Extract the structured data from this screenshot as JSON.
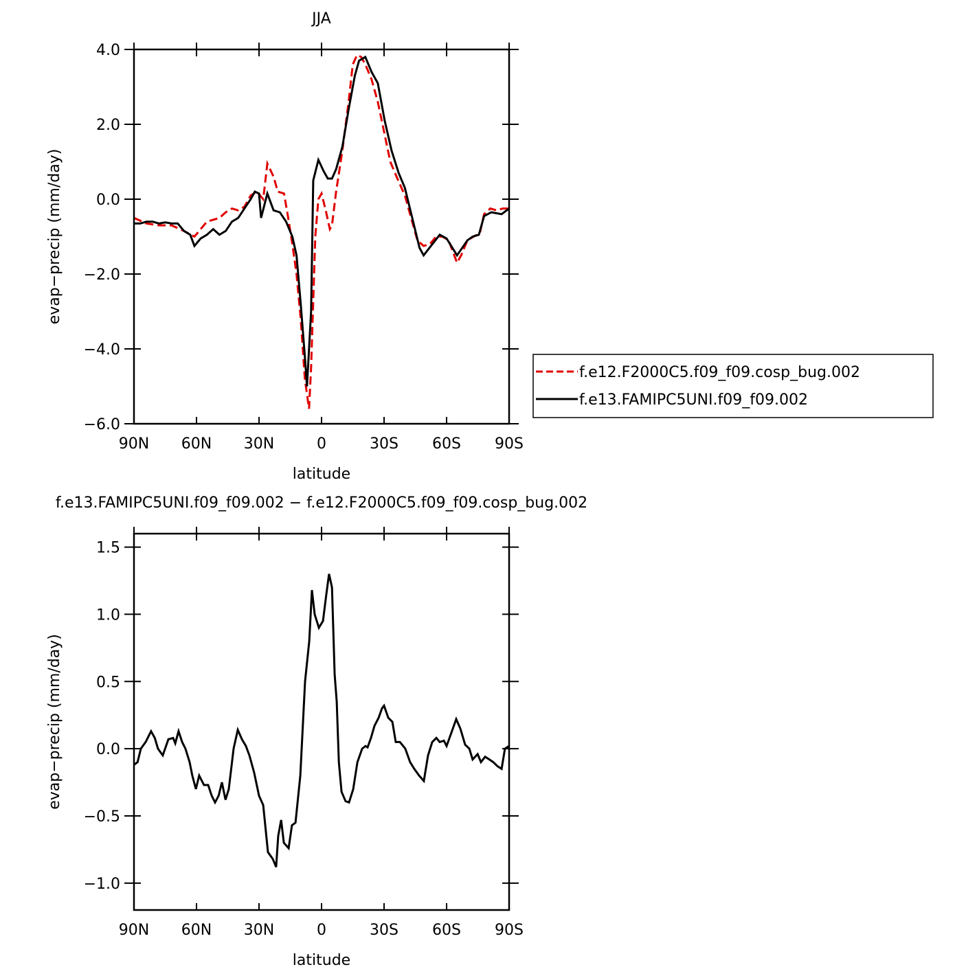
{
  "chart_data": [
    {
      "type": "line",
      "title": "JJA",
      "xlabel": "latitude",
      "ylabel": "evap−precip (mm/day)",
      "xlim": [
        90,
        -90
      ],
      "xticks": [
        {
          "value": 90,
          "label": "90N"
        },
        {
          "value": 60,
          "label": "60N"
        },
        {
          "value": 30,
          "label": "30N"
        },
        0,
        {
          "value": -30,
          "label": "30S"
        },
        {
          "value": -60,
          "label": "60S"
        },
        {
          "value": -90,
          "label": "90S"
        }
      ],
      "ylim": [
        -6,
        4
      ],
      "yticks": [
        {
          "value": 4,
          "label": "4.0"
        },
        {
          "value": 2,
          "label": "2.0"
        },
        {
          "value": 0,
          "label": "0.0"
        },
        {
          "value": -2,
          "label": "−2.0"
        },
        {
          "value": -4,
          "label": "−4.0"
        },
        {
          "value": -6,
          "label": "−6.0"
        }
      ],
      "legend": "outside-right",
      "series": [
        {
          "name": "f.e12.F2000C5.f09_f09.cosp_bug.002",
          "color": "#e00000",
          "dash": true,
          "x": [
            90,
            84,
            78,
            72,
            66,
            61,
            58,
            55,
            52,
            49,
            46,
            43,
            40,
            37,
            34,
            31,
            28,
            26,
            23,
            21,
            18,
            16,
            14,
            12,
            10,
            8,
            6,
            5,
            3,
            1.5,
            0,
            -2,
            -4,
            -5,
            -7,
            -10,
            -13,
            -15,
            -17,
            -19,
            -21,
            -24,
            -27,
            -30,
            -33,
            -36,
            -40,
            -43,
            -46,
            -49,
            -52,
            -55,
            -58,
            -61,
            -63,
            -65,
            -67,
            -70,
            -73,
            -76,
            -78,
            -81,
            -84,
            -87,
            -90
          ],
          "values": [
            -0.5,
            -0.65,
            -0.7,
            -0.7,
            -0.85,
            -1.0,
            -0.8,
            -0.6,
            -0.55,
            -0.5,
            -0.35,
            -0.25,
            -0.3,
            -0.2,
            0.1,
            0.2,
            0.0,
            0.95,
            0.6,
            0.2,
            0.15,
            -0.5,
            -1.2,
            -2.0,
            -3.2,
            -4.8,
            -5.6,
            -4.5,
            -1.0,
            0.0,
            0.15,
            -0.3,
            -0.8,
            -0.7,
            0.2,
            1.3,
            2.6,
            3.6,
            3.85,
            3.8,
            3.6,
            3.2,
            2.6,
            1.8,
            1.0,
            0.6,
            0.1,
            -0.5,
            -1.1,
            -1.25,
            -1.2,
            -1.0,
            -1.0,
            -1.1,
            -1.4,
            -1.7,
            -1.5,
            -1.1,
            -1.0,
            -0.9,
            -0.4,
            -0.25,
            -0.3,
            -0.25,
            -0.25
          ]
        },
        {
          "name": "f.e13.FAMIPC5UNI.f09_f09.002",
          "color": "#000000",
          "dash": false,
          "x": [
            90,
            87,
            84,
            81,
            78,
            75,
            72,
            69,
            66,
            63,
            61,
            58,
            55,
            52,
            49,
            46,
            43,
            40,
            37,
            34,
            32,
            30,
            29,
            26,
            23,
            20,
            17,
            14,
            12,
            10,
            8,
            7,
            5,
            4,
            1.5,
            -1,
            -3,
            -5,
            -7,
            -10,
            -13,
            -16,
            -18,
            -21,
            -24,
            -27,
            -30.3,
            -33.6,
            -37,
            -40,
            -43.5,
            -47,
            -49,
            -51.8,
            -56.7,
            -60,
            -65,
            -70,
            -72.5,
            -75.5,
            -78,
            -81.5,
            -86.4,
            -90
          ],
          "values": [
            -0.65,
            -0.65,
            -0.6,
            -0.6,
            -0.65,
            -0.62,
            -0.65,
            -0.65,
            -0.85,
            -0.95,
            -1.25,
            -1.05,
            -0.95,
            -0.8,
            -0.95,
            -0.85,
            -0.6,
            -0.5,
            -0.25,
            0.0,
            0.2,
            0.15,
            -0.5,
            0.15,
            -0.3,
            -0.35,
            -0.6,
            -1.0,
            -1.5,
            -2.8,
            -4.2,
            -5.0,
            -3.0,
            0.5,
            1.05,
            0.75,
            0.55,
            0.55,
            0.8,
            1.4,
            2.4,
            3.3,
            3.7,
            3.8,
            3.4,
            3.1,
            2.1,
            1.3,
            0.7,
            0.3,
            -0.5,
            -1.3,
            -1.5,
            -1.3,
            -0.95,
            -1.05,
            -1.5,
            -1.1,
            -1.0,
            -0.95,
            -0.45,
            -0.35,
            -0.4,
            -0.25
          ]
        }
      ]
    },
    {
      "type": "line",
      "title": "f.e13.FAMIPC5UNI.f09_f09.002 − f.e12.F2000C5.f09_f09.cosp_bug.002",
      "xlabel": "latitude",
      "ylabel": "evap−precip (mm/day)",
      "xlim": [
        90,
        -90
      ],
      "xticks": [
        {
          "value": 90,
          "label": "90N"
        },
        {
          "value": 60,
          "label": "60N"
        },
        {
          "value": 30,
          "label": "30N"
        },
        0,
        {
          "value": -30,
          "label": "30S"
        },
        {
          "value": -60,
          "label": "60S"
        },
        {
          "value": -90,
          "label": "90S"
        }
      ],
      "ylim": [
        -1.2,
        1.6
      ],
      "yticks": [
        1.5,
        {
          "value": 1,
          "label": "1.0"
        },
        0.5,
        {
          "value": 0,
          "label": "0.0"
        },
        {
          "value": -0.5,
          "label": "−0.5"
        },
        {
          "value": -1,
          "label": "−1.0"
        }
      ],
      "series": [
        {
          "color": "#000000",
          "dash": false,
          "x": [
            90,
            88.3,
            86.7,
            84.4,
            81.8,
            80,
            78.5,
            76.2,
            73.5,
            71.2,
            70.2,
            68.6,
            66.9,
            65.3,
            63.3,
            62,
            60.3,
            58.7,
            56.4,
            54.4,
            52.7,
            51.1,
            49.4,
            47.8,
            46.1,
            44.5,
            42.2,
            40.2,
            38.2,
            36.3,
            34.6,
            32.3,
            30,
            28,
            25.7,
            23.4,
            21.8,
            20.8,
            19.4,
            18.1,
            15.8,
            14.2,
            12.5,
            10.2,
            7.9,
            5.9,
            4.6,
            3.3,
            1.3,
            -0.7,
            -2.3,
            -3.6,
            -5,
            -6.3,
            -7.3,
            -8.3,
            -9.6,
            -11.5,
            -13.2,
            -15.2,
            -17.2,
            -19.5,
            -21.1,
            -22.1,
            -23.7,
            -25.4,
            -27.4,
            -29,
            -30,
            -32,
            -34,
            -35.6,
            -37.6,
            -40.2,
            -42.5,
            -44.5,
            -46.8,
            -49.1,
            -51.1,
            -53.1,
            -55.1,
            -56.7,
            -58.7,
            -60,
            -62.3,
            -64.6,
            -66.6,
            -68.9,
            -70.9,
            -72.5,
            -74.9,
            -76.5,
            -78.5,
            -80.5,
            -82.4,
            -84.4,
            -86.4,
            -88,
            -90
          ],
          "values": [
            -0.12,
            -0.1,
            0.0,
            0.05,
            0.13,
            0.08,
            0.0,
            -0.05,
            0.07,
            0.08,
            0.04,
            0.13,
            0.05,
            0.0,
            -0.1,
            -0.2,
            -0.3,
            -0.2,
            -0.27,
            -0.27,
            -0.35,
            -0.4,
            -0.35,
            -0.25,
            -0.38,
            -0.3,
            0.0,
            0.14,
            0.07,
            0.02,
            -0.05,
            -0.18,
            -0.35,
            -0.42,
            -0.77,
            -0.82,
            -0.88,
            -0.65,
            -0.53,
            -0.7,
            -0.74,
            -0.57,
            -0.55,
            -0.2,
            0.5,
            0.8,
            1.18,
            1.0,
            0.9,
            0.95,
            1.15,
            1.3,
            1.2,
            0.55,
            0.35,
            -0.1,
            -0.32,
            -0.39,
            -0.4,
            -0.3,
            -0.1,
            0.0,
            0.02,
            0.01,
            0.08,
            0.17,
            0.23,
            0.3,
            0.32,
            0.23,
            0.2,
            0.05,
            0.05,
            0.0,
            -0.1,
            -0.15,
            -0.2,
            -0.24,
            -0.05,
            0.05,
            0.08,
            0.05,
            0.06,
            0.02,
            0.12,
            0.22,
            0.15,
            0.03,
            0.0,
            -0.08,
            -0.04,
            -0.1,
            -0.06,
            -0.08,
            -0.1,
            -0.13,
            -0.15,
            0.0,
            0.02
          ]
        }
      ]
    }
  ]
}
